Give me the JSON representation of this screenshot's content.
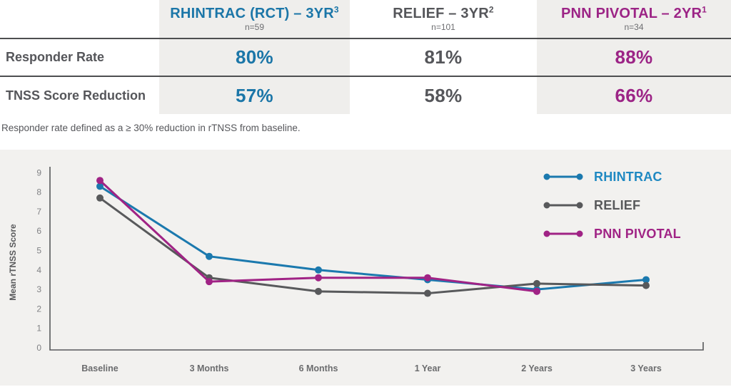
{
  "colors": {
    "blue": "#1b76a8",
    "magenta": "#9c2486",
    "dark_gray": "#55565a",
    "mid_gray": "#6d6e71",
    "shade_bg": "#efeeec",
    "chart_bg": "#f2f1ef",
    "rule": "#4d4e50",
    "axis": "#58595b",
    "tick_label": "#808184",
    "x_label": "#6b6c6e"
  },
  "table": {
    "row_labels": [
      "Responder Rate",
      "TNSS Score Reduction"
    ],
    "columns": [
      {
        "title": "RHINTRAC (RCT) – 3YR",
        "sup": "3",
        "n": "n=59",
        "responder_rate": "80%",
        "tnss_reduction": "57%"
      },
      {
        "title": "RELIEF – 3YR",
        "sup": "2",
        "n": "n=101",
        "responder_rate": "81%",
        "tnss_reduction": "58%"
      },
      {
        "title": "PNN PIVOTAL – 2YR",
        "sup": "1",
        "n": "n=34",
        "responder_rate": "88%",
        "tnss_reduction": "66%"
      }
    ]
  },
  "footnote": "Responder rate defined as a ≥ 30% reduction in rTNSS from baseline.",
  "chart_data": {
    "type": "line",
    "categories": [
      "Baseline",
      "3 Months",
      "6 Months",
      "1 Year",
      "2 Years",
      "3 Years"
    ],
    "series": [
      {
        "name": "RHINTRAC",
        "color": "#1b79ae",
        "label_color": "#2089c2",
        "values": [
          8.3,
          4.7,
          4.0,
          3.5,
          3.0,
          3.5
        ]
      },
      {
        "name": "RELIEF",
        "color": "#58595b",
        "label_color": "#58595b",
        "values": [
          7.7,
          3.6,
          2.9,
          2.8,
          3.3,
          3.2
        ]
      },
      {
        "name": "PNN PIVOTAL",
        "color": "#a02385",
        "label_color": "#a02385",
        "values": [
          8.6,
          3.4,
          3.6,
          3.6,
          2.9,
          null
        ]
      }
    ],
    "title": "",
    "xlabel": "",
    "ylabel": "Mean rTNSS Score",
    "ylim": [
      0,
      9
    ],
    "y_tick_step": 1,
    "grid": false,
    "legend_position": "upper-right"
  }
}
